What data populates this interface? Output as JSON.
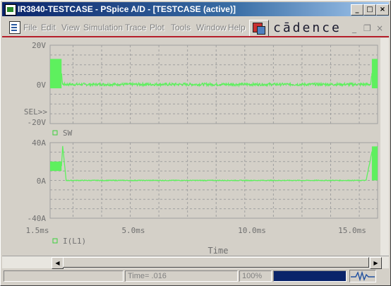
{
  "window": {
    "title": "IR3840-TESTCASE - PSpice A/D  - [TESTCASE (active)]",
    "minimize_glyph": "_",
    "restore_glyph": "□",
    "close_glyph": "×"
  },
  "menu": {
    "items": [
      "File",
      "Edit",
      "View",
      "Simulation",
      "Trace",
      "Plot",
      "Tools",
      "Window",
      "Help"
    ],
    "mdi_minimize": "_",
    "mdi_restore": "❐",
    "mdi_close": "×",
    "brand": "cādence"
  },
  "plot": {
    "top": {
      "y_ticks": [
        "20V",
        "0V",
        "-20V"
      ],
      "sel_marker": "SEL>>",
      "trace_name": "SW",
      "trace_color": "#5ef05e"
    },
    "bottom": {
      "y_ticks": [
        "40A",
        "0A",
        "-40A"
      ],
      "trace_name": "I(L1)",
      "trace_color": "#5ef05e"
    },
    "x_ticks": [
      "1.5ms",
      "5.0ms",
      "10.0ms",
      "15.0ms"
    ],
    "x_label": "Time",
    "grid_color": "#a0a0a0"
  },
  "chart_data": [
    {
      "type": "line",
      "title": "",
      "series": [
        {
          "name": "SW",
          "x": [
            1.5,
            2.0,
            2.05,
            15.5,
            15.55,
            15.8
          ],
          "y": [
            5,
            5,
            0,
            0,
            5,
            5
          ]
        }
      ],
      "xlabel": "Time",
      "ylabel": "",
      "xlim": [
        1.5,
        15.8
      ],
      "ylim": [
        -20,
        20
      ],
      "x_unit": "ms",
      "y_unit": "V",
      "grid": true
    },
    {
      "type": "line",
      "title": "",
      "series": [
        {
          "name": "I(L1)",
          "x": [
            1.5,
            2.0,
            2.05,
            2.2,
            15.3,
            15.55,
            15.8
          ],
          "y": [
            16,
            16,
            36,
            0,
            0,
            30,
            36
          ]
        }
      ],
      "xlabel": "Time",
      "ylabel": "",
      "xlim": [
        1.5,
        15.8
      ],
      "ylim": [
        -40,
        40
      ],
      "x_unit": "ms",
      "y_unit": "A",
      "grid": true
    }
  ],
  "status": {
    "time_label": "Time= .016",
    "zoom": "100%"
  }
}
